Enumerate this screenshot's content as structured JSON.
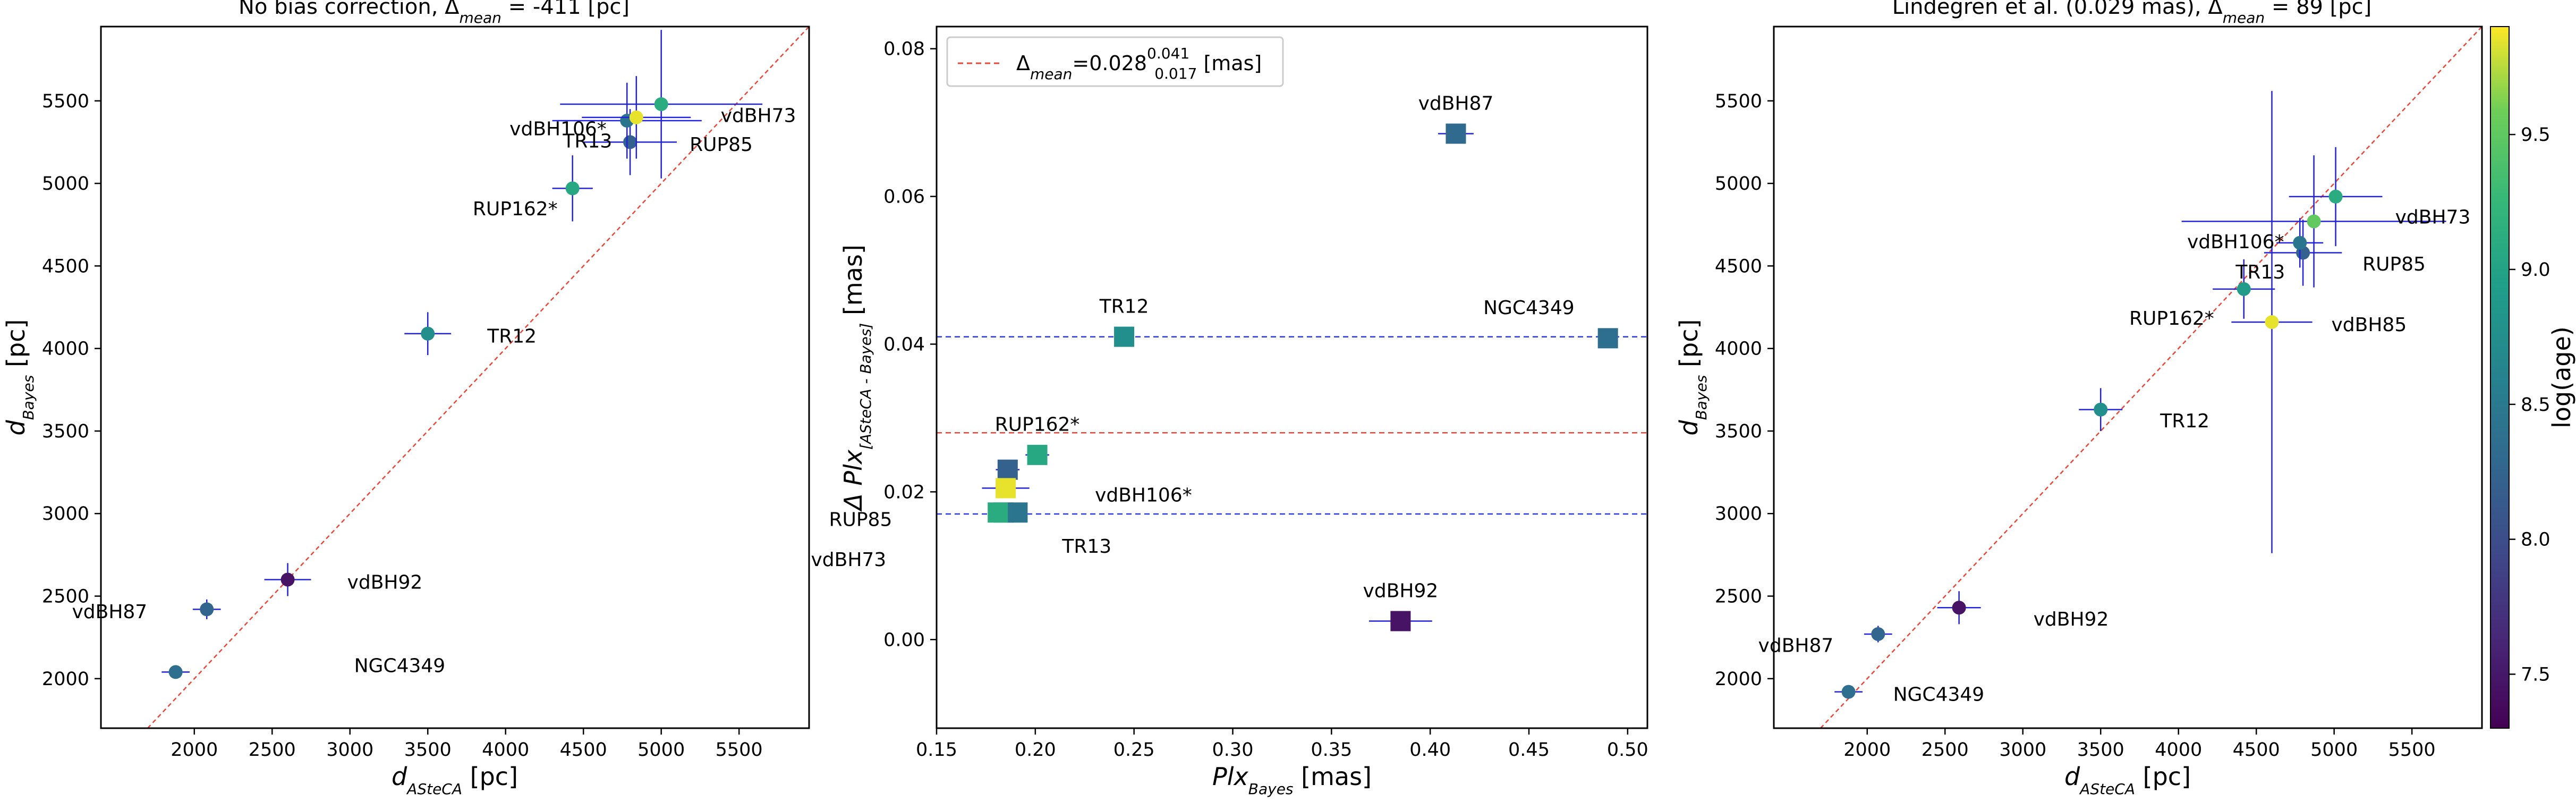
{
  "colorbar": {
    "label": "log(age)",
    "min": 7.3,
    "max": 9.9,
    "ticks": [
      "7.5",
      "8.0",
      "8.5",
      "9.0",
      "9.5"
    ],
    "tick_values": [
      7.5,
      8.0,
      8.5,
      9.0,
      9.5
    ],
    "colormap": "viridis"
  },
  "chart_data": [
    {
      "type": "scatter",
      "title_prefix": "No bias correction, ",
      "title_delta": "Δ",
      "title_delta_sub": "mean",
      "title_suffix": " = -411 [pc]",
      "xlabel_main": "d",
      "xlabel_sub": "ASteCA",
      "xlabel_unit": " [pc]",
      "ylabel_main": "d",
      "ylabel_sub": "Bayes",
      "ylabel_unit": " [pc]",
      "xlim": [
        1400,
        5950
      ],
      "ylim": [
        1700,
        5950
      ],
      "xticks": [
        "2000",
        "2500",
        "3000",
        "3500",
        "4000",
        "4500",
        "5000",
        "5500"
      ],
      "xtick_values": [
        2000,
        2500,
        3000,
        3500,
        4000,
        4500,
        5000,
        5500
      ],
      "yticks": [
        "2000",
        "2500",
        "3000",
        "3500",
        "4000",
        "4500",
        "5000",
        "5500"
      ],
      "ytick_values": [
        2000,
        2500,
        3000,
        3500,
        4000,
        4500,
        5000,
        5500
      ],
      "identity_line": true,
      "points": [
        {
          "name": "NGC4349",
          "x": 1880,
          "y": 2040,
          "xerr": 90,
          "yerr": 30,
          "age": 8.35,
          "lx": 12,
          "ly": 0
        },
        {
          "name": "vdBH87",
          "x": 2080,
          "y": 2420,
          "xerr": 90,
          "yerr": 60,
          "age": 8.25,
          "lx": -4,
          "ly": 1
        },
        {
          "name": "vdBH92",
          "x": 2600,
          "y": 2600,
          "xerr": 150,
          "yerr": 100,
          "age": 7.45,
          "lx": 4,
          "ly": 1
        },
        {
          "name": "TR12",
          "x": 3500,
          "y": 4090,
          "xerr": 150,
          "yerr": 130,
          "age": 8.75,
          "lx": 4,
          "ly": 1
        },
        {
          "name": "RUP162*",
          "x": 4430,
          "y": 4970,
          "xerr": 130,
          "yerr": 200,
          "age": 9.05,
          "lx": -1,
          "ly": 3
        },
        {
          "name": "RUP85",
          "x": 4800,
          "y": 5250,
          "xerr": 300,
          "yerr": 200,
          "age": 8.2,
          "lx": 4,
          "ly": 1
        },
        {
          "name": "TR13",
          "x": 4780,
          "y": 5380,
          "xerr": 480,
          "yerr": 230,
          "age": 8.45,
          "lx": -1,
          "ly": 3
        },
        {
          "name": "vdBH106*",
          "x": 4840,
          "y": 5400,
          "xerr": 350,
          "yerr": 250,
          "age": 9.85,
          "lx": -2,
          "ly": 2
        },
        {
          "name": "vdBH73",
          "x": 5000,
          "y": 5480,
          "xerr": 650,
          "yerr": 450,
          "age": 9.1,
          "lx": 4,
          "ly": 2
        }
      ]
    },
    {
      "type": "scatter",
      "legend": {
        "entry_prefix": "Δ",
        "entry_sub": "mean",
        "entry_value": "=0.028",
        "entry_sup": "0.041",
        "entry_low": "0.017",
        "entry_unit": " [mas]",
        "placement": "upper-left"
      },
      "xlabel_main": "Plx",
      "xlabel_sub": "Bayes",
      "xlabel_unit": " [mas]",
      "ylabel_prefix": "Δ Plx",
      "ylabel_sub": "[ASteCA - Bayes]",
      "ylabel_unit": " [mas]",
      "xlim": [
        0.15,
        0.51
      ],
      "ylim": [
        -0.012,
        0.083
      ],
      "xticks": [
        "0.15",
        "0.20",
        "0.25",
        "0.30",
        "0.35",
        "0.40",
        "0.45",
        "0.50"
      ],
      "xtick_values": [
        0.15,
        0.2,
        0.25,
        0.3,
        0.35,
        0.4,
        0.45,
        0.5
      ],
      "yticks": [
        "0.00",
        "0.02",
        "0.04",
        "0.06",
        "0.08"
      ],
      "ytick_values": [
        0.0,
        0.02,
        0.04,
        0.06,
        0.08
      ],
      "hlines": [
        {
          "y": 0.028,
          "color": "#e8473a",
          "style": "dashed"
        },
        {
          "y": 0.041,
          "color": "#2a3ae0",
          "style": "dashed"
        },
        {
          "y": 0.017,
          "color": "#2a3ae0",
          "style": "dashed"
        }
      ],
      "points": [
        {
          "name": "vdBH87",
          "x": 0.413,
          "y": 0.0685,
          "xerr": 0.009,
          "yerr": 0,
          "age": 8.3,
          "lx": 0,
          "ly": -1
        },
        {
          "name": "TR12",
          "x": 0.245,
          "y": 0.041,
          "xerr": 0.002,
          "yerr": 0,
          "age": 8.75,
          "lx": 0,
          "ly": -1
        },
        {
          "name": "NGC4349",
          "x": 0.49,
          "y": 0.0408,
          "xerr": 0.004,
          "yerr": 0,
          "age": 8.35,
          "lx": -1.5,
          "ly": -1
        },
        {
          "name": "RUP162*",
          "x": 0.201,
          "y": 0.025,
          "xerr": 0.006,
          "yerr": 0,
          "age": 9.05,
          "lx": 0,
          "ly": -1
        },
        {
          "name": "",
          "x": 0.186,
          "y": 0.023,
          "xerr": 0.006,
          "yerr": 0,
          "age": 8.2,
          "lx": 0,
          "ly": 0
        },
        {
          "name": "vdBH106*",
          "x": 0.185,
          "y": 0.0205,
          "xerr": 0.012,
          "yerr": 0,
          "age": 9.85,
          "lx": 4,
          "ly": 1
        },
        {
          "name": "RUP85",
          "x": 0.184,
          "y": 0.0172,
          "xerr": 0.005,
          "yerr": 0,
          "age": 9.0,
          "lx": -5,
          "ly": 1
        },
        {
          "name": "TR13",
          "x": 0.191,
          "y": 0.0172,
          "xerr": 0.004,
          "yerr": 0,
          "age": 8.45,
          "lx": 2,
          "ly": 3
        },
        {
          "name": "vdBH73",
          "x": 0.181,
          "y": 0.0172,
          "xerr": 0.003,
          "yerr": 0,
          "age": 9.1,
          "lx": -5,
          "ly": 4
        },
        {
          "name": "vdBH92",
          "x": 0.385,
          "y": 0.0025,
          "xerr": 0.016,
          "yerr": 0,
          "age": 7.45,
          "lx": 0,
          "ly": -1
        }
      ]
    },
    {
      "type": "scatter",
      "title_prefix": "Lindegren et al. (0.029 mas), ",
      "title_delta": "Δ",
      "title_delta_sub": "mean",
      "title_suffix": " = 89 [pc]",
      "xlabel_main": "d",
      "xlabel_sub": "ASteCA",
      "xlabel_unit": " [pc]",
      "ylabel_main": "d",
      "ylabel_sub": "Bayes",
      "ylabel_unit": " [pc]",
      "xlim": [
        1400,
        5950
      ],
      "ylim": [
        1700,
        5950
      ],
      "xticks": [
        "2000",
        "2500",
        "3000",
        "3500",
        "4000",
        "4500",
        "5000",
        "5500"
      ],
      "xtick_values": [
        2000,
        2500,
        3000,
        3500,
        4000,
        4500,
        5000,
        5500
      ],
      "yticks": [
        "2000",
        "2500",
        "3000",
        "3500",
        "4000",
        "4500",
        "5000",
        "5500"
      ],
      "ytick_values": [
        2000,
        2500,
        3000,
        3500,
        4000,
        4500,
        5000,
        5500
      ],
      "identity_line": true,
      "points": [
        {
          "name": "NGC4349",
          "x": 1880,
          "y": 1920,
          "xerr": 90,
          "yerr": 30,
          "age": 8.35,
          "lx": 3,
          "ly": 1
        },
        {
          "name": "vdBH87",
          "x": 2070,
          "y": 2270,
          "xerr": 90,
          "yerr": 50,
          "age": 8.25,
          "lx": -3,
          "ly": 2
        },
        {
          "name": "vdBH92",
          "x": 2590,
          "y": 2430,
          "xerr": 140,
          "yerr": 100,
          "age": 7.45,
          "lx": 5,
          "ly": 2
        },
        {
          "name": "TR12",
          "x": 3500,
          "y": 3630,
          "xerr": 140,
          "yerr": 130,
          "age": 8.75,
          "lx": 4,
          "ly": 2
        },
        {
          "name": "RUP162*",
          "x": 4420,
          "y": 4360,
          "xerr": 200,
          "yerr": 180,
          "age": 8.9,
          "lx": -2,
          "ly": 4
        },
        {
          "name": "vdBH85",
          "x": 4600,
          "y": 4160,
          "xerr": 260,
          "yerr": 1400,
          "age": 9.85,
          "lx": 4,
          "ly": 1
        },
        {
          "name": "RUP85",
          "x": 4800,
          "y": 4580,
          "xerr": 250,
          "yerr": 200,
          "age": 8.2,
          "lx": 4,
          "ly": 2
        },
        {
          "name": "TR13",
          "x": 4780,
          "y": 4640,
          "xerr": 150,
          "yerr": 150,
          "age": 8.45,
          "lx": -1,
          "ly": 4
        },
        {
          "name": "vdBH106*",
          "x": 4870,
          "y": 4770,
          "xerr": 850,
          "yerr": 400,
          "age": 9.5,
          "lx": -2,
          "ly": 3
        },
        {
          "name": "vdBH73",
          "x": 5010,
          "y": 4920,
          "xerr": 300,
          "yerr": 300,
          "age": 9.1,
          "lx": 4,
          "ly": 3
        }
      ]
    }
  ]
}
